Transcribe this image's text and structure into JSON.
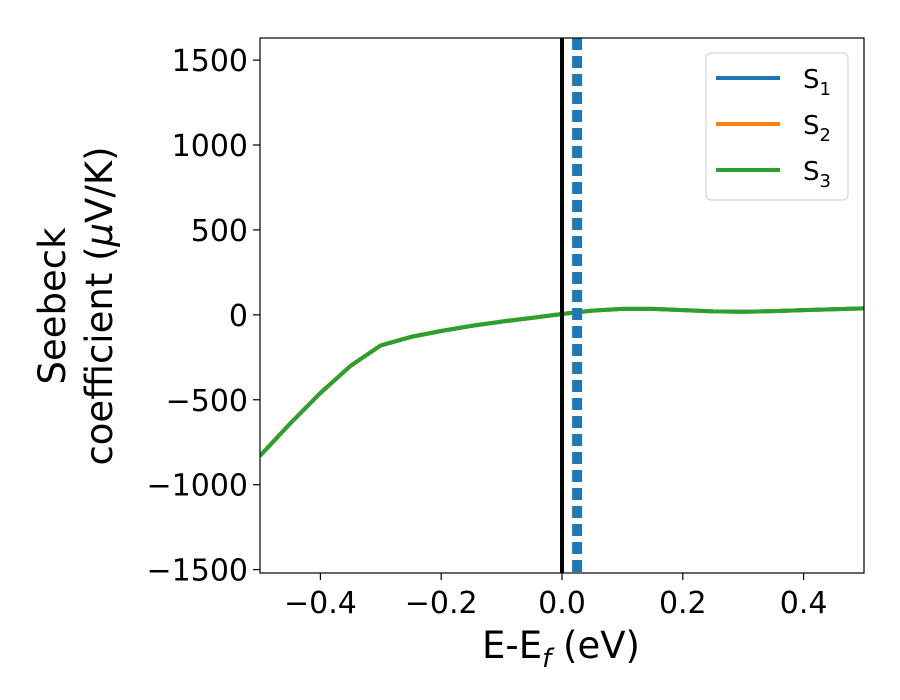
{
  "chart_data": {
    "type": "line",
    "title": "",
    "xlabel": {
      "main": "E-E",
      "sub": "f",
      "tail": " (eV)"
    },
    "ylabel": {
      "line1": "Seebeck",
      "line2_pre": "coefficient  (",
      "line2_mu": "μ",
      "line2_post": "V/K)"
    },
    "xlim": [
      -0.5,
      0.5
    ],
    "ylim": [
      -1520,
      1630
    ],
    "xticks": [
      -0.4,
      -0.2,
      0.0,
      0.2,
      0.4
    ],
    "xtick_labels": [
      "−0.4",
      "−0.2",
      "0.0",
      "0.2",
      "0.4"
    ],
    "yticks": [
      -1500,
      -1000,
      -500,
      0,
      500,
      1000,
      1500
    ],
    "ytick_labels": [
      "−1500",
      "−1000",
      "−500",
      "0",
      "500",
      "1000",
      "1500"
    ],
    "grid": false,
    "legend_position": "top-right",
    "series": [
      {
        "name": "S",
        "sub": "1",
        "color": "#1f77b4",
        "x": [
          -0.5,
          -0.45,
          -0.4,
          -0.35,
          -0.3,
          -0.25,
          -0.2,
          -0.15,
          -0.1,
          -0.05,
          0.0,
          0.05,
          0.1,
          0.15,
          0.2,
          0.25,
          0.3,
          0.35,
          0.4,
          0.45,
          0.5
        ],
        "y": [
          -830,
          -640,
          -460,
          -300,
          -180,
          -130,
          -95,
          -65,
          -40,
          -18,
          5,
          25,
          35,
          35,
          28,
          20,
          18,
          22,
          28,
          33,
          38
        ]
      },
      {
        "name": "S",
        "sub": "2",
        "color": "#ff7f0e",
        "x": [
          -0.5,
          -0.45,
          -0.4,
          -0.35,
          -0.3,
          -0.25,
          -0.2,
          -0.15,
          -0.1,
          -0.05,
          0.0,
          0.05,
          0.1,
          0.15,
          0.2,
          0.25,
          0.3,
          0.35,
          0.4,
          0.45,
          0.5
        ],
        "y": [
          -830,
          -640,
          -460,
          -300,
          -180,
          -130,
          -95,
          -65,
          -40,
          -18,
          5,
          25,
          35,
          35,
          28,
          20,
          18,
          22,
          28,
          33,
          38
        ]
      },
      {
        "name": "S",
        "sub": "3",
        "color": "#2ca02c",
        "x": [
          -0.5,
          -0.45,
          -0.4,
          -0.35,
          -0.3,
          -0.25,
          -0.2,
          -0.15,
          -0.1,
          -0.05,
          0.0,
          0.05,
          0.1,
          0.15,
          0.2,
          0.25,
          0.3,
          0.35,
          0.4,
          0.45,
          0.5
        ],
        "y": [
          -830,
          -640,
          -460,
          -300,
          -180,
          -130,
          -95,
          -65,
          -40,
          -18,
          5,
          25,
          35,
          35,
          28,
          20,
          18,
          22,
          28,
          33,
          38
        ]
      }
    ],
    "vertical_lines": [
      {
        "x": 0.0,
        "style": "solid",
        "color": "#000000"
      },
      {
        "x": 0.025,
        "style": "dashed",
        "color": "#1f77b4"
      }
    ]
  }
}
